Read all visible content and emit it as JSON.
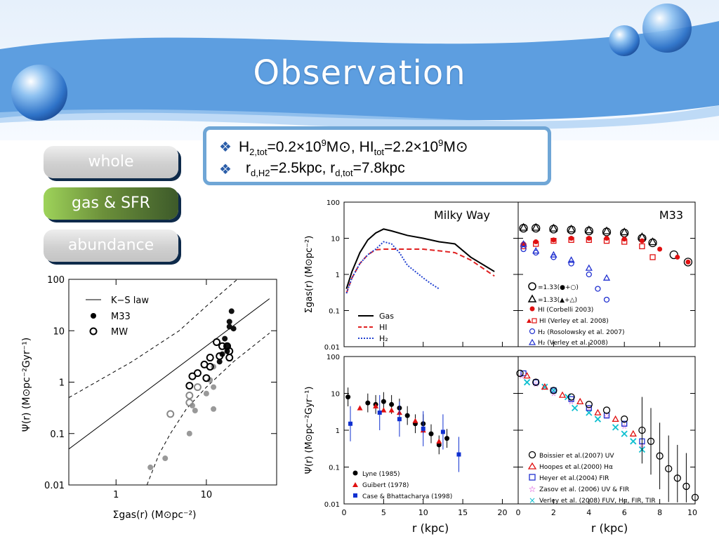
{
  "slide": {
    "title": "Observation"
  },
  "nav": {
    "whole": "whole",
    "gas_sfr": "gas & SFR",
    "abundance": "abundance"
  },
  "info": {
    "line1": {
      "h2_label": "H",
      "h2_sub": "2,tot",
      "h2_value": "=0.2×10",
      "exp1": "9",
      "unit1": "M⊙,",
      "hi_label": " HI",
      "hi_sub": "tot",
      "hi_value": "=2.2×10",
      "exp2": "9",
      "unit2": "M⊙"
    },
    "line2": {
      "r1_label": "r",
      "r1_sub": "d,H2",
      "r1_value": "=2.5kpc, ",
      "r2_label": "r",
      "r2_sub": "d,tot",
      "r2_value": "=7.8kpc"
    }
  },
  "ks_plot": {
    "ytick_labels": [
      "100",
      "10",
      "1",
      "0.1",
      "0.01"
    ],
    "xtick_labels": [
      "1",
      "10"
    ],
    "xlabel": "Σgas(r)  (M⊙pc⁻²)",
    "ylabel": "Ψ(r)  (M⊙pc⁻²Gyr⁻¹)",
    "legend": [
      "K−S law",
      "M33",
      "MW"
    ]
  },
  "milky_way_gas": {
    "panel_label": "Milky Way",
    "ytick_labels": [
      "100",
      "10",
      "1",
      "0.1",
      "0.01"
    ],
    "ylabel": "Σgas(r)  (M⊙pc⁻²)",
    "legend": [
      "Gas",
      "HI",
      "H₂"
    ]
  },
  "m33_gas": {
    "panel_label": "M33",
    "legend": [
      "=1.33(●+○)",
      "=1.33(▲+△)",
      "HI (Corbelli 2003)",
      "HI (Verley et al. 2008)",
      "H₂ (Rosolowsky et al. 2007)",
      "H₂ (Verley et al. 2008)"
    ]
  },
  "milky_way_sfr": {
    "ytick_labels": [
      "100",
      "10",
      "1",
      "0.1",
      "0.01"
    ],
    "ylabel": "Ψ(r)  (M⊙pc⁻²Gyr⁻¹)",
    "xtick_labels": [
      "0",
      "5",
      "10",
      "15",
      "20"
    ],
    "xlabel": "r  (kpc)",
    "legend": [
      "Lyne (1985)",
      "Guibert (1978)",
      "Case & Bhattacharya (1998)"
    ]
  },
  "m33_sfr": {
    "xtick_labels": [
      "0",
      "2",
      "4",
      "6",
      "8",
      "10"
    ],
    "xlabel": "r  (kpc)",
    "legend": [
      "Boissier et al.(2007) UV",
      "Hoopes et al.(2000) Hα",
      "Heyer et al.(2004) FIR",
      "Zasov et al. (2006) UV & FIR",
      "Verley et al. (2008) FUV, Hα, FIR, TIR"
    ]
  },
  "chart_data": [
    {
      "type": "scatter",
      "title": "",
      "xlabel": "Σgas(r) (M⊙pc⁻²)",
      "ylabel": "Ψ(r) (M⊙pc⁻²Gyr⁻¹)",
      "xscale": "log",
      "yscale": "log",
      "xlim": [
        0.3,
        60
      ],
      "ylim": [
        0.01,
        100
      ],
      "series": [
        {
          "name": "M33",
          "marker": "filled-circle",
          "points": [
            [
              19,
              24
            ],
            [
              18,
              15
            ],
            [
              20,
              11
            ],
            [
              18,
              12
            ],
            [
              16,
              7
            ],
            [
              17,
              5
            ],
            [
              17,
              4
            ],
            [
              15,
              3.5
            ],
            [
              14,
              2.5
            ],
            [
              12,
              2
            ],
            [
              11,
              1.1
            ],
            [
              12,
              0.8
            ],
            [
              10,
              0.6
            ],
            [
              12,
              0.3
            ],
            [
              7.5,
              0.28
            ],
            [
              7,
              0.35
            ],
            [
              6.5,
              0.1
            ],
            [
              3.5,
              0.033
            ],
            [
              2.4,
              0.022
            ]
          ]
        },
        {
          "name": "MW",
          "marker": "open-circle",
          "points": [
            [
              13,
              6
            ],
            [
              15,
              5
            ],
            [
              17,
              5
            ],
            [
              18,
              4
            ],
            [
              11,
              3
            ],
            [
              14,
              3.2
            ],
            [
              18,
              3
            ],
            [
              9.5,
              2.2
            ],
            [
              11,
              2
            ],
            [
              8,
              1.5
            ],
            [
              7,
              1.3
            ],
            [
              10,
              1.2
            ],
            [
              6.5,
              0.85
            ],
            [
              8,
              0.8
            ],
            [
              6.5,
              0.55
            ],
            [
              6.5,
              0.4
            ],
            [
              4,
              0.24
            ]
          ]
        },
        {
          "name": "K−S law",
          "style": "solid",
          "points": [
            [
              0.3,
              0.05
            ],
            [
              50,
              42
            ]
          ]
        }
      ]
    },
    {
      "type": "line",
      "title": "Milky Way",
      "xlabel": "",
      "ylabel": "Σgas(r) (M⊙pc⁻²)",
      "xlim": [
        0,
        22
      ],
      "ylim": [
        0.01,
        100
      ],
      "yscale": "log",
      "series": [
        {
          "name": "Gas",
          "x": [
            0.3,
            1,
            2,
            3,
            4,
            5,
            6,
            8,
            10,
            12,
            14,
            16,
            19
          ],
          "y": [
            0.4,
            1.2,
            4,
            9,
            14,
            18,
            16,
            12,
            10,
            8,
            7,
            3,
            1.2
          ]
        },
        {
          "name": "HI",
          "x": [
            0.3,
            1,
            2,
            3,
            4,
            5,
            6,
            8,
            10,
            12,
            14,
            16,
            19
          ],
          "y": [
            0.3,
            0.8,
            2,
            3.5,
            4.8,
            5,
            5,
            5,
            5,
            4.5,
            4,
            2.5,
            0.9
          ]
        },
        {
          "name": "H₂",
          "x": [
            0.3,
            1,
            2,
            3,
            4,
            5,
            6,
            7,
            8,
            9,
            10,
            11,
            12
          ],
          "y": [
            0.3,
            0.8,
            2,
            3.5,
            5,
            8,
            7,
            4,
            1.8,
            1.2,
            0.8,
            0.55,
            0.4
          ]
        }
      ]
    },
    {
      "type": "scatter",
      "title": "M33",
      "xlim": [
        0,
        10
      ],
      "ylim": [
        0.01,
        100
      ],
      "yscale": "log",
      "series": [
        {
          "name": "=1.33(●+○)",
          "x": [
            0.3,
            1,
            2,
            3,
            4,
            5,
            6,
            7,
            7.6,
            8.8,
            9.6
          ],
          "y": [
            19,
            19,
            18,
            17,
            16,
            15,
            14,
            10,
            7.5,
            3.5,
            2.2
          ]
        },
        {
          "name": "=1.33(▲+△)",
          "x": [
            0.3,
            1,
            2,
            3,
            4,
            5,
            6,
            7,
            7.6
          ],
          "y": [
            20,
            20,
            19,
            18,
            17,
            16,
            15,
            11,
            8
          ]
        },
        {
          "name": "HI (Corbelli 2003)",
          "x": [
            0.3,
            1,
            2,
            3,
            4,
            5,
            6,
            7,
            8,
            9,
            9.6
          ],
          "y": [
            7,
            8,
            9,
            10,
            10,
            10,
            9.5,
            8.5,
            5,
            3,
            2.2
          ]
        },
        {
          "name": "HI (Verley et al. 2008)",
          "x": [
            0.3,
            1,
            2,
            3,
            4,
            5,
            6,
            7,
            7.6
          ],
          "y": [
            6,
            7,
            8.5,
            9,
            9,
            8.5,
            8,
            6,
            3
          ]
        },
        {
          "name": "H₂ (Rosolowsky et al. 2007)",
          "x": [
            0.3,
            1,
            2,
            3,
            4,
            4.5,
            5
          ],
          "y": [
            5,
            4,
            3,
            2,
            1,
            0.4,
            0.2
          ]
        },
        {
          "name": "H₂ (Verley et al. 2008)",
          "x": [
            0.3,
            1,
            2,
            3,
            4,
            5
          ],
          "y": [
            7,
            4.5,
            3.5,
            2.5,
            1.5,
            0.8
          ]
        }
      ]
    },
    {
      "type": "scatter",
      "title": "",
      "xlabel": "r (kpc)",
      "ylabel": "Ψ(r) (M⊙pc⁻²Gyr⁻¹)",
      "xlim": [
        0,
        22
      ],
      "ylim": [
        0.01,
        100
      ],
      "yscale": "log",
      "series": [
        {
          "name": "Lyne (1985)",
          "x": [
            0.5,
            3,
            4,
            5,
            6,
            7,
            8,
            9,
            10,
            11,
            12,
            13
          ],
          "y": [
            8,
            5.5,
            5,
            6,
            5,
            4,
            2.5,
            1.5,
            1.5,
            0.8,
            0.4,
            0.6
          ]
        },
        {
          "name": "Guibert (1978)",
          "x": [
            2,
            4,
            5,
            6,
            7,
            9,
            10,
            12
          ],
          "y": [
            4,
            4.5,
            3.5,
            3.5,
            3,
            1.8,
            1,
            0.5
          ]
        },
        {
          "name": "Case & Bhattacharya (1998)",
          "x": [
            0.8,
            4.5,
            7,
            10,
            12.5,
            14.5
          ],
          "y": [
            1.5,
            3,
            2,
            1.1,
            0.9,
            0.22
          ]
        }
      ]
    },
    {
      "type": "scatter",
      "title": "",
      "xlabel": "r (kpc)",
      "xlim": [
        0,
        10
      ],
      "ylim": [
        0.01,
        100
      ],
      "yscale": "log",
      "series": [
        {
          "name": "Boissier et al.(2007) UV",
          "x": [
            0.1,
            1,
            2,
            3,
            4,
            5,
            6,
            7,
            7.5,
            8,
            8.5,
            9,
            9.5,
            10
          ],
          "y": [
            35,
            20,
            12,
            8,
            5,
            3.5,
            2,
            1,
            0.5,
            0.2,
            0.09,
            0.05,
            0.03,
            0.015
          ]
        },
        {
          "name": "Hoopes et al.(2000) Hα",
          "x": [
            0.5,
            1.5,
            2.5,
            3.5,
            4.5,
            5.5,
            6.5
          ],
          "y": [
            30,
            15,
            9,
            6,
            3,
            2,
            0.8
          ]
        },
        {
          "name": "Heyer et al.(2004) FIR",
          "x": [
            0.3,
            1,
            2,
            3,
            4,
            5,
            6,
            7
          ],
          "y": [
            35,
            20,
            12,
            7,
            4,
            2.5,
            1.5,
            0.5
          ]
        },
        {
          "name": "Zasov et al. (2006) UV & FIR",
          "x": [
            0.2,
            1,
            2,
            3,
            4,
            5,
            6,
            7
          ],
          "y": [
            30,
            18,
            10,
            6,
            4,
            2.5,
            1.3,
            0.4
          ]
        },
        {
          "name": "Verley et al. (2008) FUV, Hα, FIR, TIR",
          "x": [
            0.5,
            1.5,
            2,
            2.8,
            3.2,
            4,
            4.5,
            5.5,
            6,
            6.5,
            7
          ],
          "y": [
            20,
            15,
            12,
            8,
            4,
            3,
            2,
            1.2,
            0.8,
            0.5,
            0.3
          ]
        }
      ]
    }
  ]
}
